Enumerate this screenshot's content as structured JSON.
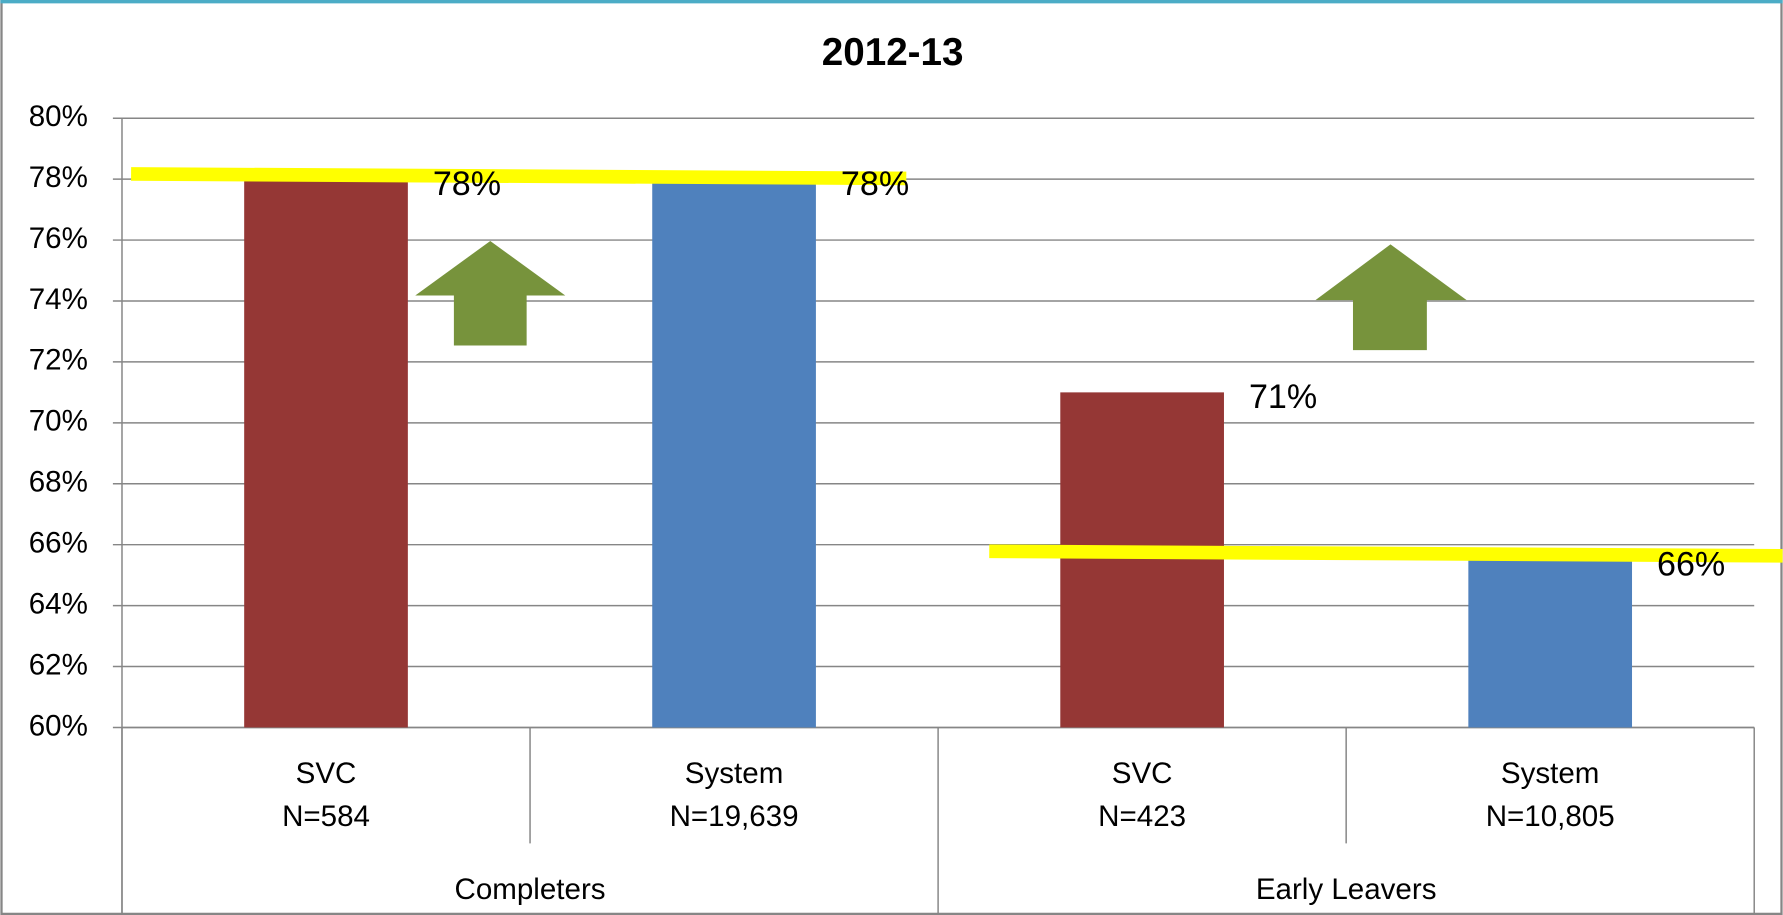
{
  "chart_data": {
    "type": "bar",
    "title": "2012-13",
    "categories": [
      "SVC",
      "System",
      "SVC",
      "System"
    ],
    "category_counts": [
      "N=584",
      "N=19,639",
      "N=423",
      "N=10,805"
    ],
    "groups": [
      "Completers",
      "Early Leavers"
    ],
    "values": [
      78,
      78,
      71,
      65.5
    ],
    "value_labels": [
      "78%",
      "78%",
      "71%",
      "66%"
    ],
    "colors": [
      "#953735",
      "#4f81bd",
      "#953735",
      "#4f81bd"
    ],
    "ylim": [
      60,
      80
    ],
    "yticks": [
      {
        "value": 60,
        "label": "60%"
      },
      {
        "value": 62,
        "label": "62%"
      },
      {
        "value": 64,
        "label": "64%"
      },
      {
        "value": 66,
        "label": "66%"
      },
      {
        "value": 68,
        "label": "68%"
      },
      {
        "value": 70,
        "label": "70%"
      },
      {
        "value": 72,
        "label": "72%"
      },
      {
        "value": 74,
        "label": "74%"
      },
      {
        "value": 76,
        "label": "76%"
      },
      {
        "value": 78,
        "label": "78%"
      },
      {
        "value": 80,
        "label": "80%"
      }
    ],
    "grid": true
  }
}
